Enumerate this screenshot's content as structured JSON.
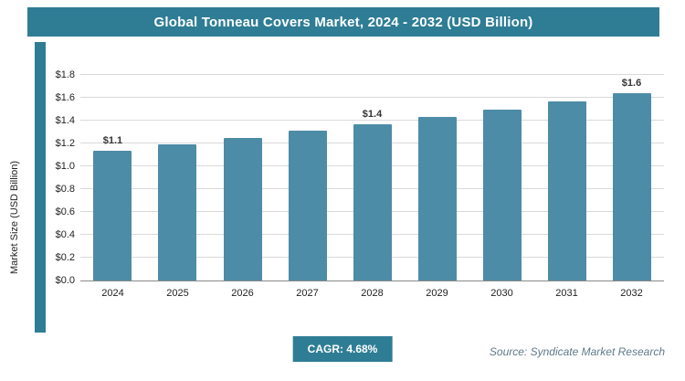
{
  "header": {
    "title": "Global Tonneau Covers Market, 2024 - 2032 (USD Billion)"
  },
  "colors": {
    "header_bg": "#2e7d95",
    "bar": "#4d8ca6",
    "accent_stripe": "#2e7d95",
    "cagr_bg": "#2e7d95",
    "gridline": "#d9d9d9"
  },
  "chart_data": {
    "type": "bar",
    "title": "Global Tonneau Covers Market, 2024 - 2032 (USD Billion)",
    "categories": [
      "2024",
      "2025",
      "2026",
      "2027",
      "2028",
      "2029",
      "2030",
      "2031",
      "2032"
    ],
    "values": [
      1.14,
      1.19,
      1.25,
      1.31,
      1.37,
      1.43,
      1.5,
      1.57,
      1.64
    ],
    "bar_labels": [
      "$1.1",
      "",
      "",
      "",
      "$1.4",
      "",
      "",
      "",
      "$1.6"
    ],
    "xlabel": "",
    "ylabel": "Market Size (USD Billion)",
    "ylim": [
      0,
      1.8
    ],
    "ytick_step": 0.2,
    "ytick_labels": [
      "$0.0",
      "$0.2",
      "$0.4",
      "$0.6",
      "$0.8",
      "$1.0",
      "$1.2",
      "$1.4",
      "$1.6",
      "$1.8"
    ],
    "grid": true,
    "legend": "none"
  },
  "footer": {
    "cagr": "CAGR: 4.68%",
    "source": "Source: Syndicate Market Research"
  }
}
